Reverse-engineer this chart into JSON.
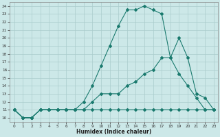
{
  "xlabel": "Humidex (Indice chaleur)",
  "background_color": "#cce8e8",
  "line_color": "#1a7a6e",
  "grid_color": "#aacccc",
  "xlim": [
    -0.5,
    23.5
  ],
  "ylim": [
    9.5,
    24.5
  ],
  "xticks": [
    0,
    1,
    2,
    3,
    4,
    5,
    6,
    7,
    8,
    9,
    10,
    11,
    12,
    13,
    14,
    15,
    16,
    17,
    18,
    19,
    20,
    21,
    22,
    23
  ],
  "yticks": [
    10,
    11,
    12,
    13,
    14,
    15,
    16,
    17,
    18,
    19,
    20,
    21,
    22,
    23,
    24
  ],
  "line1_x": [
    0,
    1,
    2,
    3,
    4,
    5,
    6,
    7,
    8,
    9,
    10,
    11,
    12,
    13,
    14,
    15,
    16,
    17,
    18,
    19,
    20,
    21,
    22,
    23
  ],
  "line1_y": [
    11,
    10,
    10,
    11,
    11,
    11,
    11,
    11,
    11,
    11,
    11,
    11,
    11,
    11,
    11,
    11,
    11,
    11,
    11,
    11,
    11,
    11,
    11,
    11
  ],
  "line2_x": [
    0,
    1,
    2,
    3,
    4,
    5,
    6,
    7,
    8,
    9,
    10,
    11,
    12,
    13,
    14,
    15,
    16,
    17,
    18,
    19,
    20,
    21,
    22,
    23
  ],
  "line2_y": [
    11,
    10,
    10,
    11,
    11,
    11,
    11,
    11,
    12,
    14,
    16.5,
    19,
    21.5,
    23.5,
    23.5,
    24,
    23.5,
    23,
    17.5,
    20,
    17.5,
    13,
    12.5,
    11
  ],
  "line3_x": [
    0,
    1,
    2,
    3,
    4,
    5,
    6,
    7,
    8,
    9,
    10,
    11,
    12,
    13,
    14,
    15,
    16,
    17,
    18,
    19,
    20,
    21,
    22,
    23
  ],
  "line3_y": [
    11,
    10,
    10,
    11,
    11,
    11,
    11,
    11,
    11,
    12,
    13,
    13,
    13,
    14,
    14.5,
    15.5,
    16,
    17.5,
    17.5,
    15.5,
    14,
    12.5,
    11,
    11
  ]
}
